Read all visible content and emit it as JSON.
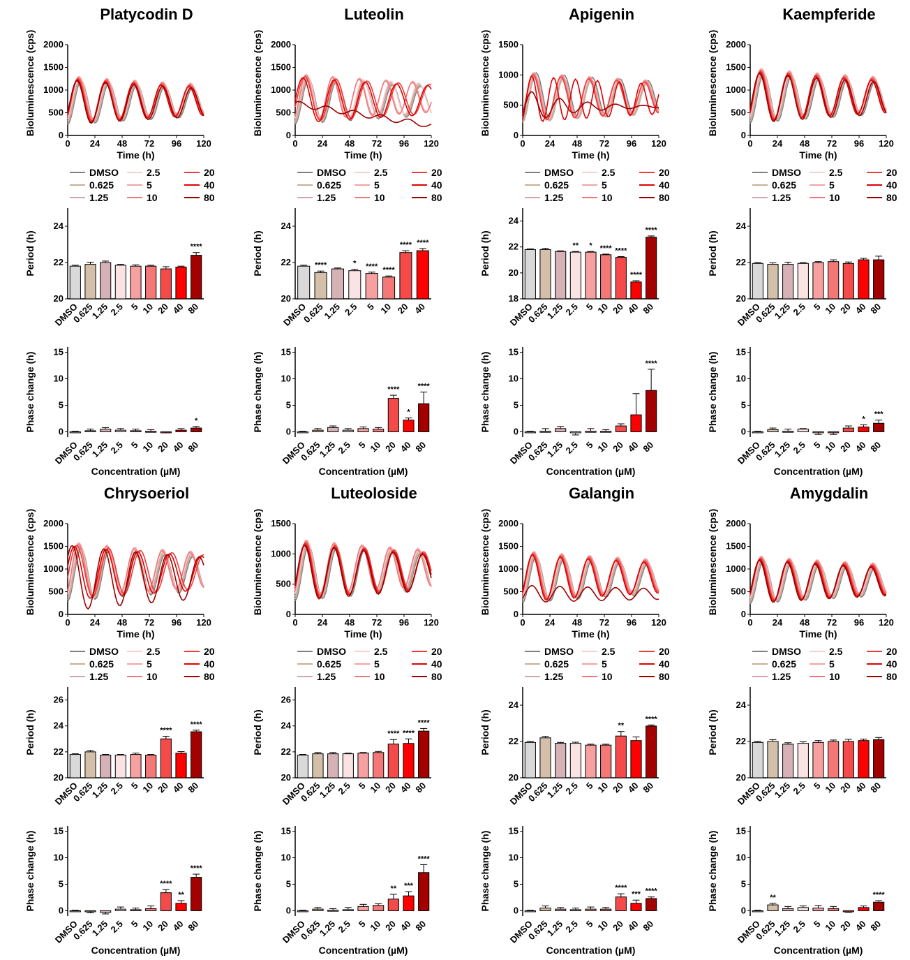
{
  "figure": {
    "xlabel_conc": "Concentration (µM)",
    "time_axis": {
      "label": "Time (h)",
      "ticks": [
        0,
        24,
        48,
        72,
        96,
        120
      ],
      "range": [
        0,
        120
      ]
    },
    "ylabel_lum": "Bioluminescence (cps)",
    "ylabel_period": "Period (h)",
    "ylabel_phase": "Phase change (h)",
    "phase_ticks": [
      0,
      5,
      10,
      15
    ],
    "phase_range": [
      -1,
      16
    ],
    "concentrations": [
      "DMSO",
      "0.625",
      "1.25",
      "2.5",
      "5",
      "10",
      "20",
      "40",
      "80"
    ],
    "legend_labels": [
      "DMSO",
      "0.625",
      "1.25",
      "2.5",
      "5",
      "10",
      "20",
      "40",
      "80"
    ],
    "colors": {
      "bars": [
        "#d9d9d9",
        "#d4bfa8",
        "#d6b2b6",
        "#fbe3e3",
        "#f6a0a0",
        "#f47878",
        "#f44a4a",
        "#ff0000",
        "#a30000"
      ],
      "lines": [
        "#7f7f7f",
        "#c9ae95",
        "#d3a5aa",
        "#f8cfcf",
        "#f4a2a2",
        "#f07a7a",
        "#ee3b3b",
        "#e00000",
        "#9b0000"
      ]
    }
  },
  "chart_data": [
    {
      "compound": "Platycodin D",
      "lum": {
        "type": "line",
        "ylim": [
          0,
          2000
        ],
        "yticks": [
          0,
          500,
          1000,
          1500,
          2000
        ],
        "peak": 1500,
        "mode": "platycodin"
      },
      "period": {
        "type": "bar",
        "categories": [
          "DMSO",
          "0.625",
          "1.25",
          "2.5",
          "5",
          "10",
          "20",
          "40",
          "80"
        ],
        "values": [
          21.8,
          21.9,
          22.0,
          21.85,
          21.8,
          21.8,
          21.65,
          21.75,
          22.4
        ],
        "errors": [
          0.05,
          0.12,
          0.08,
          0.05,
          0.07,
          0.05,
          0.12,
          0.05,
          0.15
        ],
        "sig": [
          "",
          "",
          "",
          "",
          "",
          "",
          "",
          "",
          "****"
        ],
        "ylim": [
          20,
          25
        ],
        "yticks": [
          20,
          22,
          24
        ]
      },
      "phase": {
        "type": "bar",
        "categories": [
          "DMSO",
          "0.625",
          "1.25",
          "2.5",
          "5",
          "10",
          "20",
          "40",
          "80"
        ],
        "values": [
          0,
          0.2,
          0.5,
          0.3,
          0.2,
          0.1,
          -0.1,
          0.3,
          0.7
        ],
        "errors": [
          0.1,
          0.3,
          0.3,
          0.3,
          0.3,
          0.3,
          0.1,
          0.3,
          0.3
        ],
        "sig": [
          "",
          "",
          "",
          "",
          "",
          "",
          "",
          "",
          "*"
        ]
      }
    },
    {
      "compound": "Luteolin",
      "lum": {
        "type": "line",
        "ylim": [
          0,
          2000
        ],
        "yticks": [
          0,
          500,
          1000,
          1500,
          2000
        ],
        "peak": 1550,
        "mode": "luteolin"
      },
      "period": {
        "type": "bar",
        "categories": [
          "DMSO",
          "0.625",
          "1.25",
          "2.5",
          "5",
          "10",
          "20",
          "40"
        ],
        "values": [
          21.8,
          21.45,
          21.65,
          21.55,
          21.4,
          21.2,
          22.55,
          22.65
        ],
        "errors": [
          0.05,
          0.08,
          0.05,
          0.08,
          0.07,
          0.06,
          0.1,
          0.12
        ],
        "sig": [
          "",
          "****",
          "",
          "*",
          "****",
          "****",
          "****",
          "****"
        ],
        "ylim": [
          20,
          25
        ],
        "yticks": [
          20,
          22,
          24
        ]
      },
      "phase": {
        "type": "bar",
        "categories": [
          "DMSO",
          "0.625",
          "1.25",
          "2.5",
          "5",
          "10",
          "20",
          "40",
          "80"
        ],
        "values": [
          0,
          0.3,
          0.8,
          0.3,
          0.6,
          0.5,
          6.3,
          2.2,
          5.3
        ],
        "errors": [
          0.1,
          0.3,
          0.3,
          0.3,
          0.3,
          0.3,
          0.6,
          0.4,
          2.2
        ],
        "sig": [
          "",
          "",
          "",
          "",
          "",
          "",
          "****",
          "*",
          "****"
        ]
      }
    },
    {
      "compound": "Apigenin",
      "lum": {
        "type": "line",
        "ylim": [
          0,
          1500
        ],
        "yticks": [
          0,
          500,
          1000,
          1500
        ],
        "peak": 1200,
        "mode": "apigenin"
      },
      "period": {
        "type": "bar",
        "categories": [
          "DMSO",
          "0.625",
          "1.25",
          "2.5",
          "5",
          "10",
          "20",
          "40",
          "80"
        ],
        "values": [
          21.8,
          21.8,
          21.65,
          21.6,
          21.6,
          21.4,
          21.2,
          19.3,
          22.75
        ],
        "errors": [
          0.05,
          0.1,
          0.05,
          0.05,
          0.05,
          0.05,
          0.06,
          0.1,
          0.1
        ],
        "sig": [
          "",
          "",
          "",
          "**",
          "*",
          "****",
          "****",
          "****",
          "****"
        ],
        "ylim": [
          18,
          25
        ],
        "yticks": [
          18,
          20,
          22,
          24
        ]
      },
      "phase": {
        "type": "bar",
        "categories": [
          "DMSO",
          "0.625",
          "1.25",
          "2.5",
          "5",
          "10",
          "20",
          "40",
          "80"
        ],
        "values": [
          0,
          0.1,
          0.6,
          -0.2,
          0.1,
          0.1,
          1.1,
          3.2,
          7.8
        ],
        "errors": [
          0.1,
          0.5,
          0.4,
          0.4,
          0.5,
          0.3,
          0.4,
          4.0,
          4.0
        ],
        "sig": [
          "",
          "",
          "",
          "",
          "",
          "",
          "",
          "",
          "****"
        ]
      }
    },
    {
      "compound": "Kaempferide",
      "lum": {
        "type": "line",
        "ylim": [
          0,
          2000
        ],
        "yticks": [
          0,
          500,
          1000,
          1500,
          2000
        ],
        "peak": 1700,
        "mode": "kaempferide"
      },
      "period": {
        "type": "bar",
        "categories": [
          "DMSO",
          "0.625",
          "1.25",
          "2.5",
          "5",
          "10",
          "20",
          "40",
          "80"
        ],
        "values": [
          21.95,
          21.9,
          21.9,
          21.95,
          22.0,
          22.05,
          21.95,
          22.15,
          22.15
        ],
        "errors": [
          0.05,
          0.08,
          0.12,
          0.05,
          0.05,
          0.1,
          0.08,
          0.08,
          0.2
        ],
        "sig": [
          "",
          "",
          "",
          "",
          "",
          "",
          "",
          "",
          ""
        ],
        "ylim": [
          20,
          25
        ],
        "yticks": [
          20,
          22,
          24
        ]
      },
      "phase": {
        "type": "bar",
        "categories": [
          "DMSO",
          "0.625",
          "1.25",
          "2.5",
          "5",
          "10",
          "20",
          "40",
          "80"
        ],
        "values": [
          0,
          0.4,
          0.1,
          0.5,
          -0.1,
          -0.1,
          0.7,
          0.9,
          1.6
        ],
        "errors": [
          0.1,
          0.3,
          0.4,
          0.1,
          0.4,
          0.4,
          0.4,
          0.4,
          0.6
        ],
        "sig": [
          "",
          "",
          "",
          "",
          "",
          "",
          "",
          "*",
          "***"
        ]
      }
    },
    {
      "compound": "Chrysoeriol",
      "lum": {
        "type": "line",
        "ylim": [
          0,
          2000
        ],
        "yticks": [
          0,
          500,
          1000,
          1500,
          2000
        ],
        "peak": 1820,
        "mode": "chrysoeriol"
      },
      "period": {
        "type": "bar",
        "categories": [
          "DMSO",
          "0.625",
          "1.25",
          "2.5",
          "5",
          "10",
          "20",
          "40",
          "80"
        ],
        "values": [
          21.8,
          22.0,
          21.75,
          21.75,
          21.8,
          21.75,
          23.0,
          21.9,
          23.55
        ],
        "errors": [
          0.05,
          0.1,
          0.05,
          0.05,
          0.1,
          0.05,
          0.2,
          0.12,
          0.12
        ],
        "sig": [
          "",
          "",
          "",
          "",
          "",
          "",
          "****",
          "",
          "****"
        ],
        "ylim": [
          20,
          27
        ],
        "yticks": [
          20,
          22,
          24,
          26
        ]
      },
      "phase": {
        "type": "bar",
        "categories": [
          "DMSO",
          "0.625",
          "1.25",
          "2.5",
          "5",
          "10",
          "20",
          "40",
          "80"
        ],
        "values": [
          0,
          -0.1,
          -0.3,
          0.3,
          0.2,
          0.4,
          3.4,
          1.4,
          6.3
        ],
        "errors": [
          0.1,
          0.3,
          0.3,
          0.4,
          0.3,
          0.5,
          0.6,
          0.5,
          0.6
        ],
        "sig": [
          "",
          "",
          "",
          "",
          "",
          "",
          "****",
          "**",
          "****"
        ]
      }
    },
    {
      "compound": "Luteoloside",
      "lum": {
        "type": "line",
        "ylim": [
          0,
          1500
        ],
        "yticks": [
          0,
          500,
          1000,
          1500
        ],
        "peak": 1420,
        "mode": "luteoloside"
      },
      "period": {
        "type": "bar",
        "categories": [
          "DMSO",
          "0.625",
          "1.25",
          "2.5",
          "5",
          "10",
          "20",
          "40",
          "80"
        ],
        "values": [
          21.75,
          21.85,
          21.85,
          21.85,
          21.9,
          21.95,
          22.6,
          22.65,
          23.6
        ],
        "errors": [
          0.05,
          0.1,
          0.1,
          0.05,
          0.05,
          0.08,
          0.35,
          0.35,
          0.2
        ],
        "sig": [
          "",
          "",
          "",
          "",
          "",
          "",
          "****",
          "****",
          "****"
        ],
        "ylim": [
          20,
          27
        ],
        "yticks": [
          20,
          22,
          24,
          26
        ]
      },
      "phase": {
        "type": "bar",
        "categories": [
          "DMSO",
          "0.625",
          "1.25",
          "2.5",
          "5",
          "10",
          "20",
          "40",
          "80"
        ],
        "values": [
          0,
          0.3,
          0.1,
          0.2,
          0.8,
          1.0,
          2.2,
          2.8,
          7.2
        ],
        "errors": [
          0.1,
          0.3,
          0.3,
          0.4,
          0.4,
          0.3,
          0.9,
          0.8,
          1.5
        ],
        "sig": [
          "",
          "",
          "",
          "",
          "",
          "",
          "**",
          "***",
          "****"
        ]
      }
    },
    {
      "compound": "Galangin",
      "lum": {
        "type": "line",
        "ylim": [
          0,
          2000
        ],
        "yticks": [
          0,
          500,
          1000,
          1500,
          2000
        ],
        "peak": 1600,
        "mode": "galangin"
      },
      "period": {
        "type": "bar",
        "categories": [
          "DMSO",
          "0.625",
          "1.25",
          "2.5",
          "5",
          "10",
          "20",
          "40",
          "80"
        ],
        "values": [
          21.95,
          22.2,
          21.9,
          21.9,
          21.8,
          21.8,
          22.3,
          22.05,
          22.85
        ],
        "errors": [
          0.05,
          0.08,
          0.05,
          0.06,
          0.05,
          0.05,
          0.25,
          0.2,
          0.06
        ],
        "sig": [
          "",
          "",
          "",
          "",
          "",
          "",
          "**",
          "",
          "****"
        ],
        "ylim": [
          20,
          25
        ],
        "yticks": [
          20,
          22,
          24
        ]
      },
      "phase": {
        "type": "bar",
        "categories": [
          "DMSO",
          "0.625",
          "1.25",
          "2.5",
          "5",
          "10",
          "20",
          "40",
          "80"
        ],
        "values": [
          0,
          0.5,
          0.3,
          0.2,
          0.3,
          0.3,
          2.6,
          1.4,
          2.3
        ],
        "errors": [
          0.1,
          0.4,
          0.3,
          0.3,
          0.4,
          0.3,
          0.6,
          0.6,
          0.3
        ],
        "sig": [
          "",
          "",
          "",
          "",
          "",
          "",
          "****",
          "***",
          "****"
        ]
      }
    },
    {
      "compound": "Amygdalin",
      "lum": {
        "type": "line",
        "ylim": [
          0,
          2000
        ],
        "yticks": [
          0,
          500,
          1000,
          1500,
          2000
        ],
        "peak": 1480,
        "mode": "amygdalin"
      },
      "period": {
        "type": "bar",
        "categories": [
          "DMSO",
          "0.625",
          "1.25",
          "2.5",
          "5",
          "10",
          "20",
          "40",
          "80"
        ],
        "values": [
          21.95,
          22.0,
          21.85,
          21.9,
          21.95,
          22.0,
          22.0,
          22.05,
          22.1
        ],
        "errors": [
          0.05,
          0.1,
          0.08,
          0.08,
          0.1,
          0.08,
          0.12,
          0.08,
          0.12
        ],
        "sig": [
          "",
          "",
          "",
          "",
          "",
          "",
          "",
          "",
          ""
        ],
        "ylim": [
          20,
          25
        ],
        "yticks": [
          20,
          22,
          24
        ]
      },
      "phase": {
        "type": "bar",
        "categories": [
          "DMSO",
          "0.625",
          "1.25",
          "2.5",
          "5",
          "10",
          "20",
          "40",
          "80"
        ],
        "values": [
          0,
          1.1,
          0.4,
          0.6,
          0.5,
          0.4,
          -0.2,
          0.6,
          1.6
        ],
        "errors": [
          0.1,
          0.3,
          0.4,
          0.3,
          0.5,
          0.4,
          0.1,
          0.3,
          0.3
        ],
        "sig": [
          "",
          "**",
          "",
          "",
          "",
          "",
          "",
          "",
          "****"
        ]
      }
    }
  ]
}
